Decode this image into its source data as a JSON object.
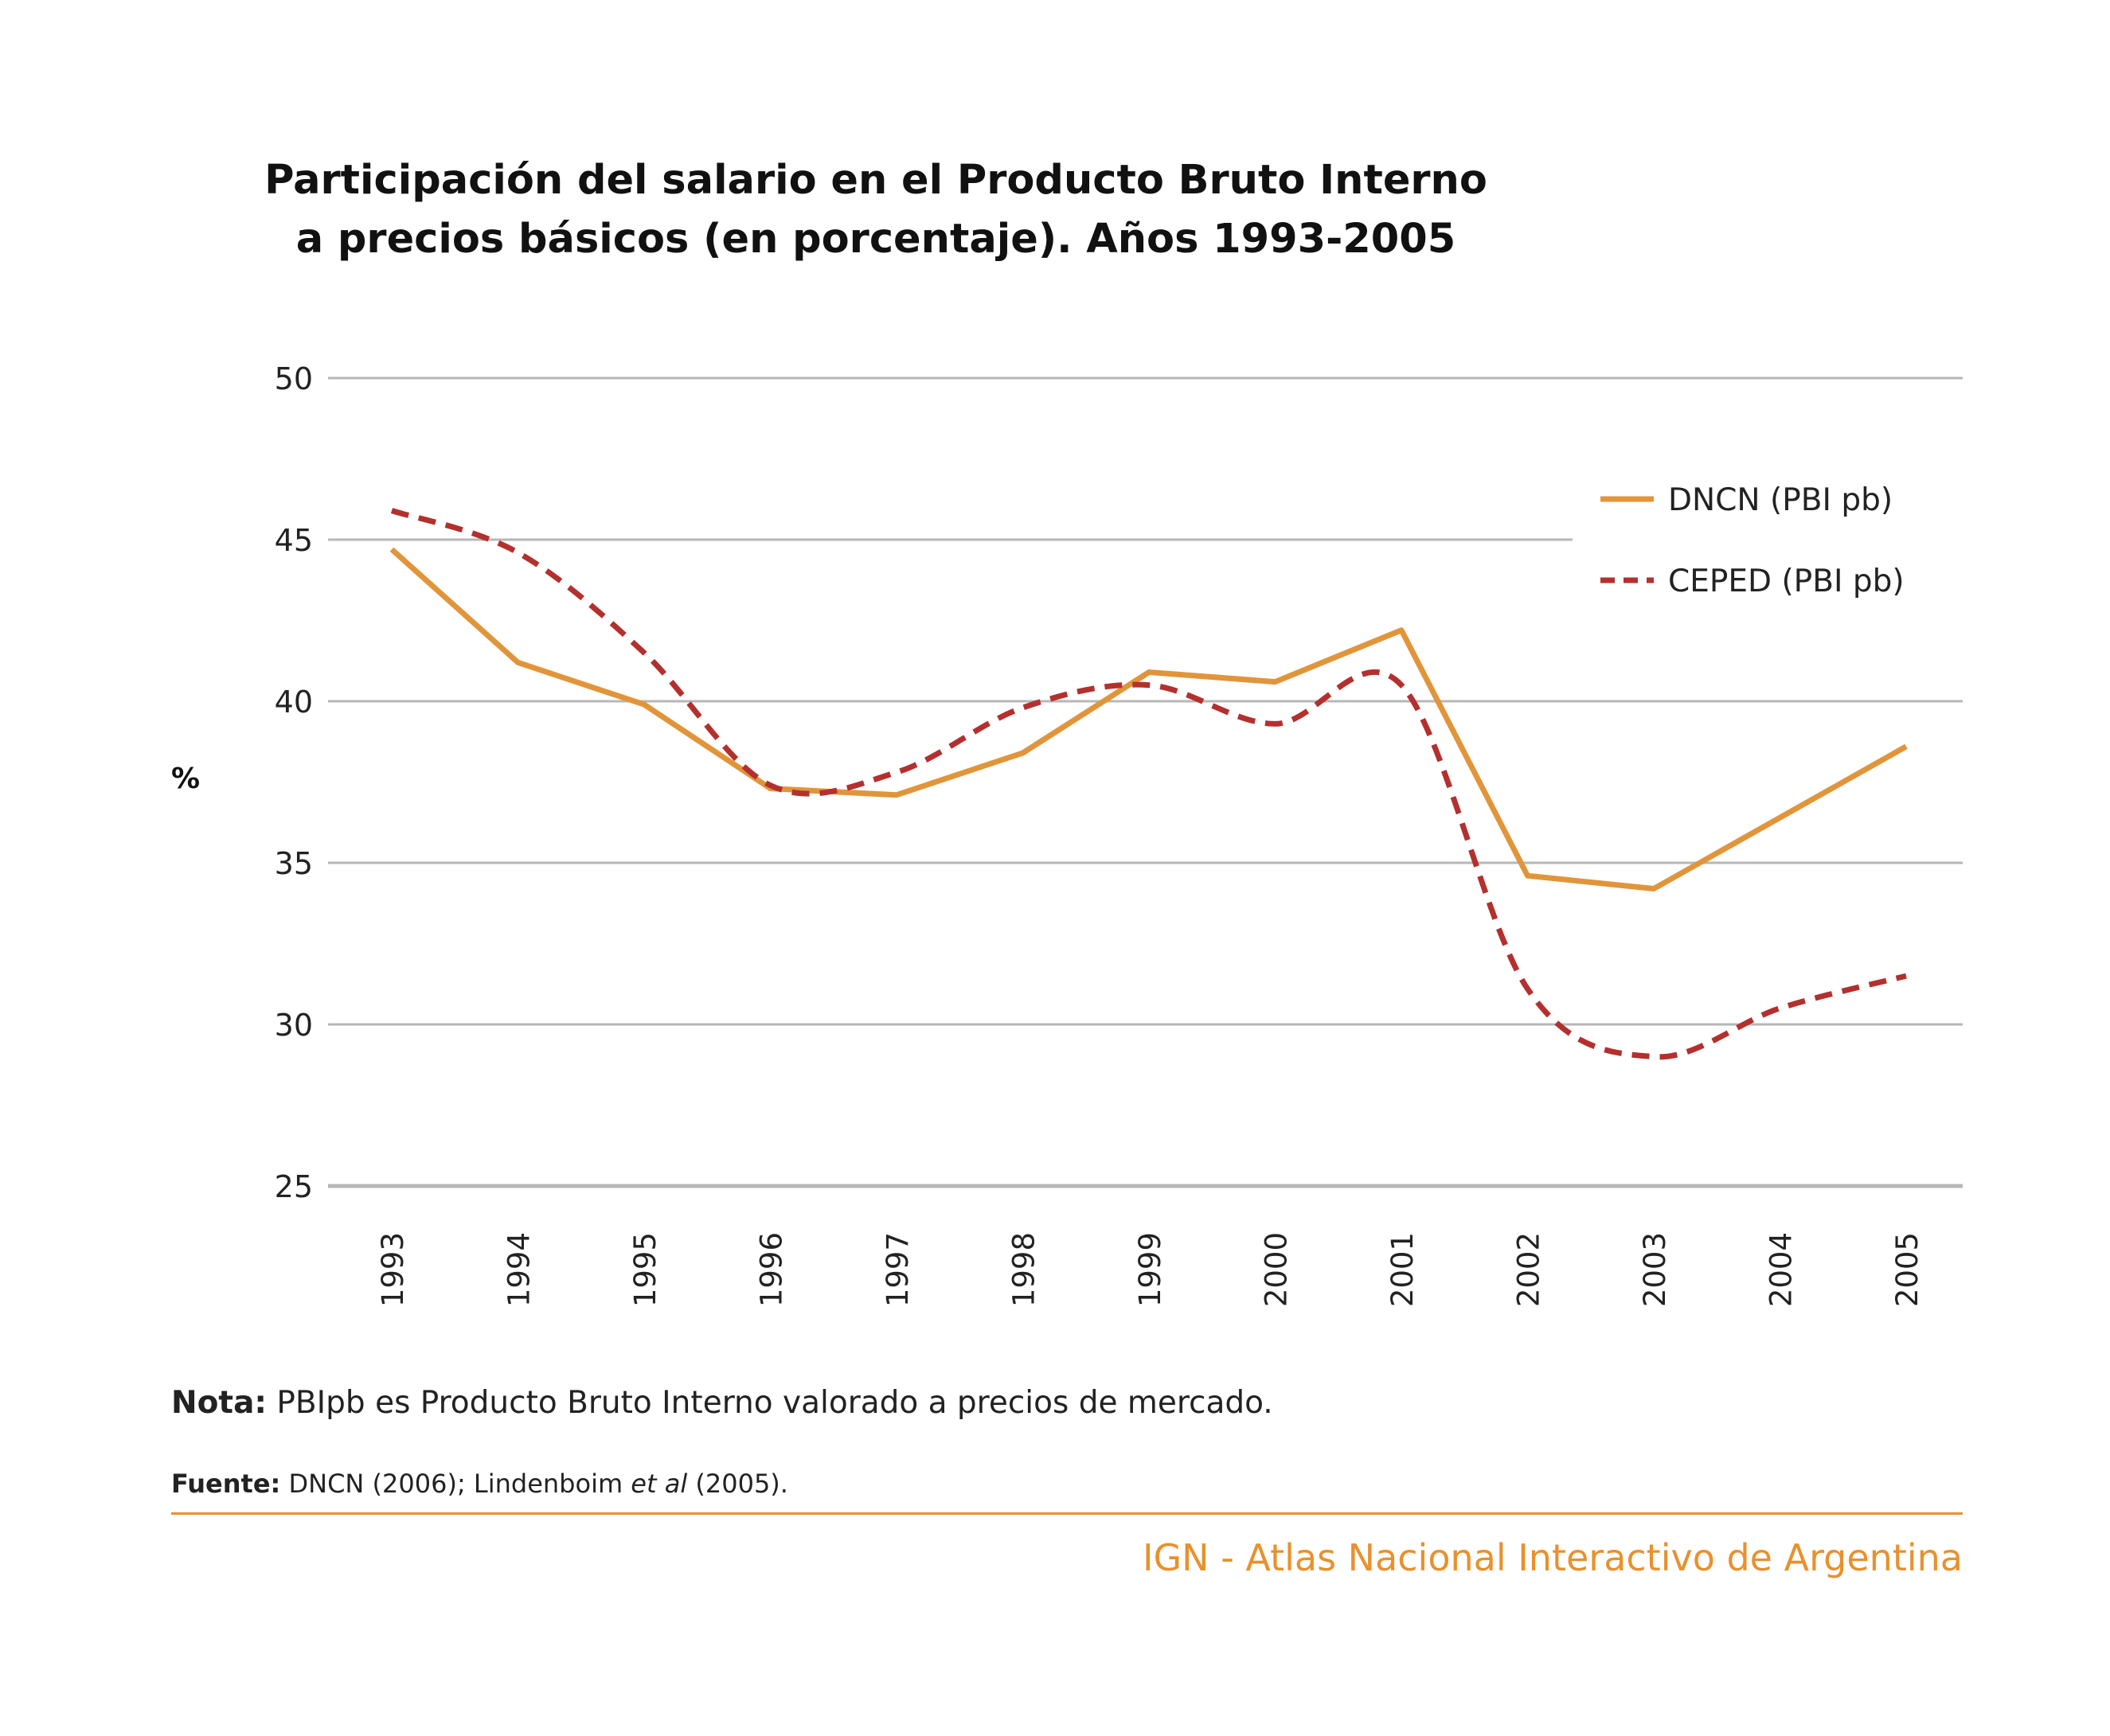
{
  "header": {
    "title_line1": "Participación del salario en el Producto Bruto Interno",
    "title_line2": "a precios básicos (en porcentaje). Años 1993-2005"
  },
  "chart_data": {
    "type": "line",
    "title": "Participación del salario en el Producto Bruto Interno a precios básicos (en porcentaje). Años 1993-2005",
    "xlabel": "",
    "ylabel": "%",
    "ylim": [
      25,
      50
    ],
    "yticks": [
      25,
      30,
      35,
      40,
      45,
      50
    ],
    "grid": true,
    "legend_position": "top-right",
    "categories": [
      "1993",
      "1994",
      "1995",
      "1996",
      "1997",
      "1998",
      "1999",
      "2000",
      "2001",
      "2002",
      "2003",
      "2004",
      "2005"
    ],
    "series": [
      {
        "name": "DNCN (PBI pb)",
        "style": "solid",
        "color": "#e1953a",
        "values": [
          44.7,
          41.2,
          39.9,
          37.3,
          37.1,
          38.4,
          40.9,
          40.6,
          42.2,
          34.6,
          34.2,
          36.4,
          38.6
        ]
      },
      {
        "name": "CEPED (PBI pb)",
        "style": "dashed",
        "color": "#b3302e",
        "values": [
          45.9,
          44.6,
          41.5,
          37.4,
          37.8,
          39.8,
          40.5,
          39.3,
          40.5,
          31.1,
          29.0,
          30.5,
          31.5
        ]
      }
    ]
  },
  "notes": {
    "nota_label": "Nota:",
    "nota_text": " PBIpb es Producto Bruto Interno valorado a precios de mercado.",
    "fuente_label": "Fuente:",
    "fuente_text1": " DNCN (2006); Lindenboim ",
    "fuente_italic": "et al",
    "fuente_text2": " (2005)."
  },
  "footer": {
    "credit": "IGN - Atlas Nacional Interactivo de Argentina"
  }
}
